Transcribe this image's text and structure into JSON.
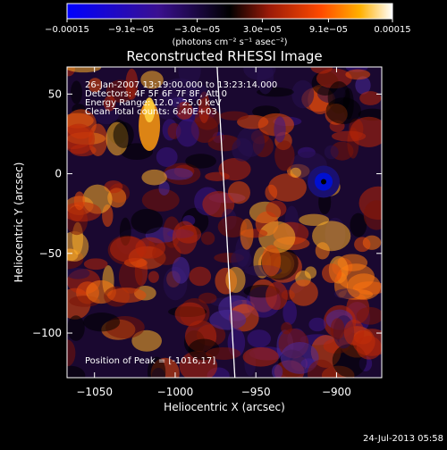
{
  "chart_data": {
    "type": "heatmap",
    "title": "Reconstructed RHESSI Image",
    "xlabel": "Heliocentric X (arcsec)",
    "ylabel": "Heliocentric Y (arcsec)",
    "xlim": [
      -1067,
      -872
    ],
    "ylim": [
      -128,
      67
    ],
    "xticks": [
      -1050,
      -1000,
      -950,
      -900
    ],
    "xtick_labels": [
      "−1050",
      "−1000",
      "−950",
      "−900"
    ],
    "yticks": [
      50,
      0,
      -50,
      -100
    ],
    "ytick_labels": [
      "50",
      "0",
      "−50",
      "−100"
    ],
    "colorbar": {
      "ticks": [
        -0.00015,
        -9.1e-05,
        -3e-05,
        3e-05,
        9.1e-05,
        0.00015
      ],
      "tick_labels": [
        "−0.00015",
        "−9.1e−05",
        "−3.0e−05",
        "3.0e−05",
        "9.1e−05",
        "0.00015"
      ],
      "range": [
        -0.00015,
        0.00015
      ],
      "units": "(photons cm⁻² s⁻¹ asec⁻²)",
      "colors": [
        "#0000ff",
        "#2a0a6e",
        "#000000",
        "#8a1a0a",
        "#ff3a00",
        "#ff9a00",
        "#ffffff"
      ]
    },
    "annotations": [
      "26-Jan-2007 13:19:00.000 to 13:23:14.000",
      "Detectors: 4F 5F 6F 7F 8F, Att 0",
      "Energy Range: 12.0 - 25.0 keV",
      "Clean     Total counts: 6.40E+03",
      "Position of Peak = [-1016,17]"
    ],
    "peak": [
      -1016,
      17
    ],
    "minimum_feature": [
      -908,
      -5
    ],
    "limb_line": [
      [
        -974,
        67
      ],
      [
        -963,
        -128
      ]
    ]
  },
  "footer": {
    "timestamp": "24-Jul-2013 05:58"
  }
}
